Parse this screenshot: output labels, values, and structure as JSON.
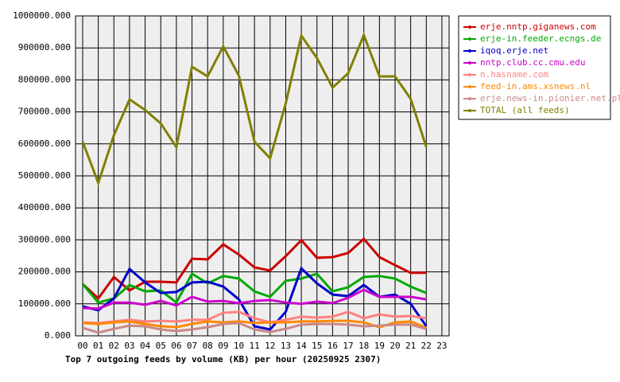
{
  "chart_data": {
    "type": "line",
    "title": "Top 7 outgoing feeds by volume (KB) per hour (20250925 2307)",
    "categories": [
      "00",
      "01",
      "02",
      "03",
      "04",
      "05",
      "06",
      "07",
      "08",
      "09",
      "10",
      "11",
      "12",
      "13",
      "14",
      "15",
      "16",
      "17",
      "18",
      "19",
      "20",
      "21",
      "22",
      "23"
    ],
    "ylim": [
      0,
      1000000
    ],
    "yticks": [
      {
        "value": 0,
        "label": "0.000"
      },
      {
        "value": 100000,
        "label": "100000.000"
      },
      {
        "value": 200000,
        "label": "200000.000"
      },
      {
        "value": 300000,
        "label": "300000.000"
      },
      {
        "value": 400000,
        "label": "400000.000"
      },
      {
        "value": 500000,
        "label": "500000.000"
      },
      {
        "value": 600000,
        "label": "600000.000"
      },
      {
        "value": 700000,
        "label": "700000.000"
      },
      {
        "value": 800000,
        "label": "800000.000"
      },
      {
        "value": 900000,
        "label": "900000.000"
      },
      {
        "value": 1000000,
        "label": "1000000.000"
      }
    ],
    "grid": true,
    "legend": "top-right",
    "series": [
      {
        "name": "erje.nntp.giganews.com",
        "color": "#cc0000",
        "values": [
          162000,
          117000,
          184000,
          142000,
          169000,
          169000,
          167000,
          241000,
          239000,
          286000,
          254000,
          214000,
          204000,
          249000,
          299000,
          244000,
          246000,
          259000,
          303000,
          246000,
          221000,
          197000,
          197000,
          null
        ]
      },
      {
        "name": "erje-in.feeder.ecngs.de",
        "color": "#00aa00",
        "values": [
          162000,
          104000,
          117000,
          159000,
          139000,
          142000,
          104000,
          194000,
          164000,
          187000,
          179000,
          139000,
          122000,
          172000,
          179000,
          194000,
          139000,
          152000,
          184000,
          187000,
          179000,
          154000,
          134000,
          null
        ]
      },
      {
        "name": "iqoq.erje.net",
        "color": "#0000cc",
        "values": [
          92000,
          80000,
          117000,
          209000,
          167000,
          134000,
          137000,
          167000,
          169000,
          154000,
          114000,
          30000,
          20000,
          75000,
          211000,
          164000,
          129000,
          124000,
          159000,
          122000,
          129000,
          100000,
          30000,
          null
        ]
      },
      {
        "name": "nntp.club.cc.cmu.edu",
        "color": "#cc00cc",
        "values": [
          87000,
          85000,
          104000,
          104000,
          97000,
          109000,
          95000,
          122000,
          107000,
          109000,
          102000,
          109000,
          112000,
          104000,
          100000,
          107000,
          102000,
          119000,
          144000,
          122000,
          122000,
          122000,
          114000,
          null
        ]
      },
      {
        "name": "n.hasname.com",
        "color": "#ff8080",
        "values": [
          42000,
          40000,
          45000,
          50000,
          45000,
          47000,
          45000,
          50000,
          50000,
          72000,
          75000,
          55000,
          42000,
          50000,
          60000,
          57000,
          60000,
          75000,
          55000,
          67000,
          60000,
          62000,
          55000,
          null
        ]
      },
      {
        "name": "feed-in.ams.xsnews.nl",
        "color": "#ff8800",
        "values": [
          40000,
          37000,
          42000,
          45000,
          37000,
          30000,
          27000,
          37000,
          45000,
          42000,
          45000,
          40000,
          42000,
          42000,
          45000,
          45000,
          47000,
          47000,
          42000,
          27000,
          42000,
          45000,
          25000,
          null
        ]
      },
      {
        "name": "erje.news-in.pionier.net.pl",
        "color": "#cc8888",
        "values": [
          25000,
          10000,
          22000,
          32000,
          30000,
          20000,
          15000,
          20000,
          27000,
          37000,
          40000,
          20000,
          12000,
          22000,
          35000,
          37000,
          37000,
          35000,
          30000,
          32000,
          35000,
          35000,
          22000,
          null
        ]
      },
      {
        "name": "TOTAL (all feeds)",
        "color": "#808000",
        "values": [
          607000,
          478000,
          627000,
          739000,
          706000,
          664000,
          590000,
          841000,
          811000,
          905000,
          813000,
          607000,
          555000,
          726000,
          938000,
          868000,
          776000,
          821000,
          940000,
          811000,
          811000,
          741000,
          590000,
          null
        ]
      }
    ]
  }
}
